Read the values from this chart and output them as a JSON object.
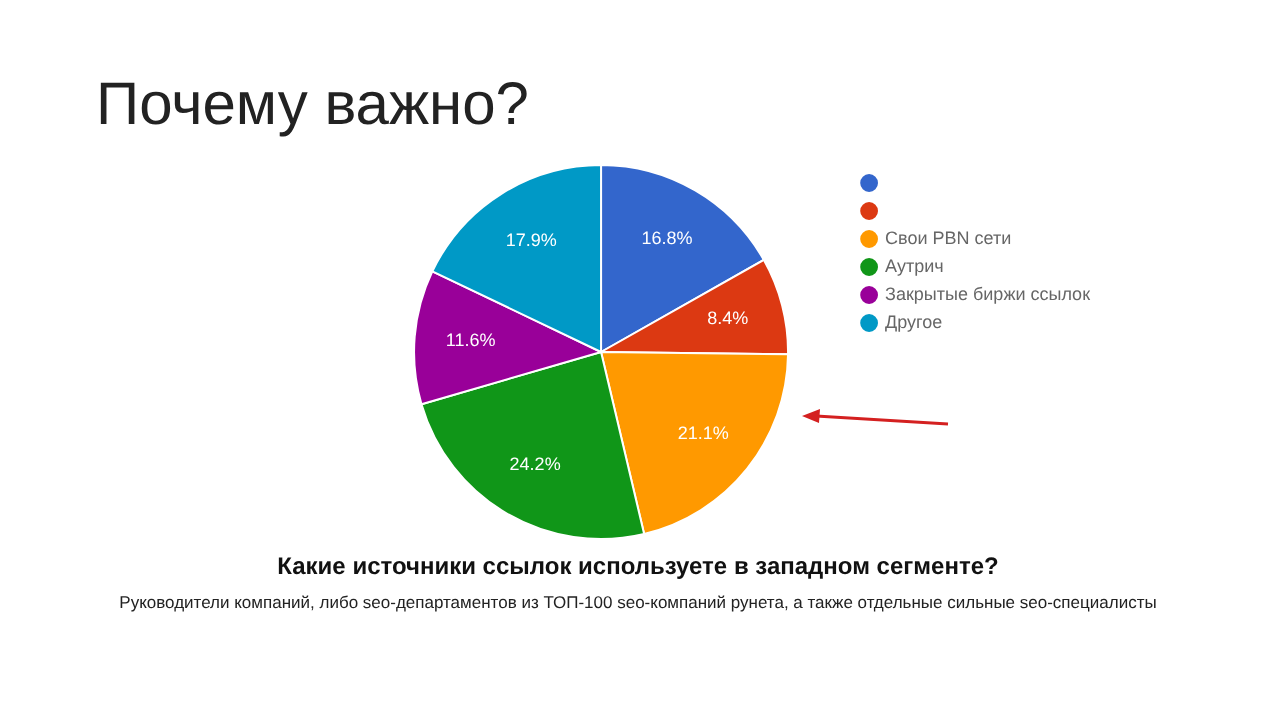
{
  "chart_data": {
    "type": "pie",
    "title": "Почему важно?",
    "subtitle": "Какие источники ссылок используете в западном сегменте?",
    "annotations": [
      "Руководители компаний, либо seo-департаментов из ТОП-100 seo-компаний рунета, а также отдельные сильные seo-специалисты"
    ],
    "categories": [
      null,
      null,
      "Свои PBN сети",
      "Аутрич",
      "Закрытые биржи ссылок",
      "Другое"
    ],
    "values": [
      16.8,
      8.4,
      21.1,
      24.2,
      11.6,
      17.9
    ],
    "value_labels": [
      "16.8%",
      "8.4%",
      "21.1%",
      "24.2%",
      "11.6%",
      "17.9%"
    ],
    "colors": [
      "#3366cc",
      "#dc3912",
      "#ff9900",
      "#109618",
      "#990099",
      "#0099c6"
    ],
    "legend": "top right"
  }
}
